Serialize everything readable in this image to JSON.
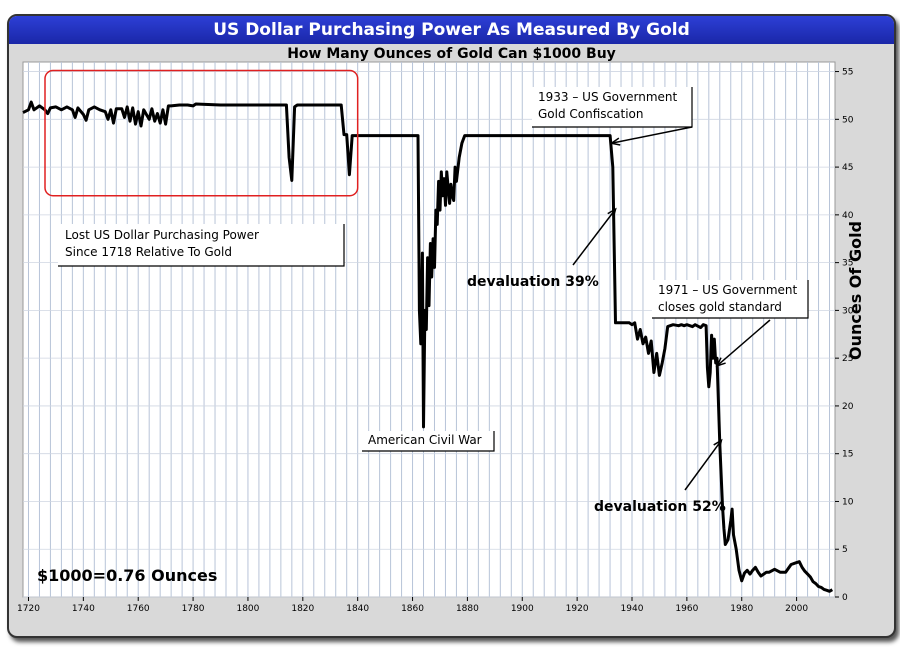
{
  "header": {
    "title": "US Dollar Purchasing Power As Measured By Gold",
    "subtitle": "How Many Ounces of Gold Can $1000 Buy"
  },
  "chart_data": {
    "type": "line",
    "ylabel": "Ounces Of Gold",
    "xlim": [
      1718,
      2014
    ],
    "ylim": [
      0,
      56
    ],
    "x_ticks": [
      1720,
      1740,
      1760,
      1780,
      1800,
      1820,
      1840,
      1860,
      1880,
      1900,
      1920,
      1940,
      1960,
      1980,
      2000
    ],
    "y_ticks": [
      0,
      5,
      10,
      15,
      20,
      25,
      30,
      35,
      40,
      45,
      50,
      55
    ],
    "grid": true,
    "series": [
      {
        "color": "#000000",
        "points": [
          [
            1718,
            50.7
          ],
          [
            1720,
            51.0
          ],
          [
            1721,
            51.8
          ],
          [
            1722,
            51.0
          ],
          [
            1724,
            51.4
          ],
          [
            1726,
            51.0
          ],
          [
            1727,
            50.6
          ],
          [
            1728,
            51.2
          ],
          [
            1730,
            51.3
          ],
          [
            1732,
            51.0
          ],
          [
            1734,
            51.3
          ],
          [
            1736,
            51.0
          ],
          [
            1737,
            50.2
          ],
          [
            1738,
            51.2
          ],
          [
            1740,
            50.5
          ],
          [
            1741,
            49.9
          ],
          [
            1742,
            51.0
          ],
          [
            1744,
            51.3
          ],
          [
            1746,
            51.0
          ],
          [
            1748,
            50.8
          ],
          [
            1749,
            50.0
          ],
          [
            1750,
            51.0
          ],
          [
            1751,
            49.6
          ],
          [
            1752,
            51.1
          ],
          [
            1754,
            51.1
          ],
          [
            1755,
            50.2
          ],
          [
            1756,
            51.3
          ],
          [
            1757,
            49.8
          ],
          [
            1758,
            51.2
          ],
          [
            1759,
            49.5
          ],
          [
            1760,
            50.8
          ],
          [
            1761,
            49.3
          ],
          [
            1762,
            51.0
          ],
          [
            1763,
            50.5
          ],
          [
            1764,
            50.0
          ],
          [
            1765,
            51.1
          ],
          [
            1766,
            49.8
          ],
          [
            1767,
            50.6
          ],
          [
            1768,
            49.6
          ],
          [
            1769,
            51.0
          ],
          [
            1770,
            49.5
          ],
          [
            1771,
            51.4
          ],
          [
            1772,
            51.4
          ],
          [
            1775,
            51.5
          ],
          [
            1778,
            51.5
          ],
          [
            1780,
            51.4
          ],
          [
            1781,
            51.6
          ],
          [
            1790,
            51.5
          ],
          [
            1800,
            51.5
          ],
          [
            1810,
            51.5
          ],
          [
            1814,
            51.5
          ],
          [
            1815,
            46.0
          ],
          [
            1816,
            43.6
          ],
          [
            1817,
            51.3
          ],
          [
            1818,
            51.5
          ],
          [
            1825,
            51.5
          ],
          [
            1830,
            51.5
          ],
          [
            1834,
            51.5
          ],
          [
            1835,
            48.4
          ],
          [
            1836,
            48.4
          ],
          [
            1837,
            44.2
          ],
          [
            1838,
            48.3
          ],
          [
            1839,
            48.3
          ],
          [
            1843,
            48.3
          ],
          [
            1850,
            48.3
          ],
          [
            1861,
            48.3
          ],
          [
            1862,
            48.3
          ],
          [
            1862.5,
            30.0
          ],
          [
            1863,
            26.5
          ],
          [
            1863.6,
            36.0
          ],
          [
            1864,
            17.8
          ],
          [
            1864.5,
            30.0
          ],
          [
            1865,
            28.0
          ],
          [
            1865.5,
            35.5
          ],
          [
            1866,
            30.5
          ],
          [
            1866.5,
            37.0
          ],
          [
            1867,
            33.5
          ],
          [
            1867.5,
            37.5
          ],
          [
            1868,
            34.5
          ],
          [
            1868.5,
            40.5
          ],
          [
            1869,
            39.0
          ],
          [
            1869.5,
            43.5
          ],
          [
            1870,
            40.5
          ],
          [
            1870.5,
            44.5
          ],
          [
            1871,
            42.0
          ],
          [
            1871.5,
            43.8
          ],
          [
            1872,
            41.0
          ],
          [
            1872.5,
            44.5
          ],
          [
            1873,
            42.8
          ],
          [
            1873.5,
            41.2
          ],
          [
            1874,
            43.2
          ],
          [
            1874.5,
            42.0
          ],
          [
            1875,
            41.5
          ],
          [
            1875.5,
            45.0
          ],
          [
            1876,
            43.5
          ],
          [
            1877,
            46.0
          ],
          [
            1878,
            47.5
          ],
          [
            1879,
            48.3
          ],
          [
            1900,
            48.3
          ],
          [
            1920,
            48.3
          ],
          [
            1932,
            48.3
          ],
          [
            1933,
            45.0
          ],
          [
            1934,
            28.7
          ],
          [
            1939,
            28.7
          ],
          [
            1940,
            28.5
          ],
          [
            1941,
            28.7
          ],
          [
            1942,
            27.0
          ],
          [
            1943,
            28.0
          ],
          [
            1944,
            26.5
          ],
          [
            1945,
            27.2
          ],
          [
            1946,
            25.5
          ],
          [
            1947,
            26.8
          ],
          [
            1948,
            23.5
          ],
          [
            1949,
            25.5
          ],
          [
            1950,
            23.2
          ],
          [
            1951,
            24.5
          ],
          [
            1952,
            26.0
          ],
          [
            1953,
            28.3
          ],
          [
            1955,
            28.5
          ],
          [
            1957,
            28.4
          ],
          [
            1958,
            28.5
          ],
          [
            1959,
            28.4
          ],
          [
            1960,
            28.5
          ],
          [
            1962,
            28.3
          ],
          [
            1963,
            28.5
          ],
          [
            1965,
            28.2
          ],
          [
            1966,
            28.5
          ],
          [
            1967,
            28.4
          ],
          [
            1967.5,
            24.0
          ],
          [
            1968,
            22.0
          ],
          [
            1968.5,
            23.5
          ],
          [
            1969,
            27.4
          ],
          [
            1969.5,
            25.0
          ],
          [
            1970,
            27.0
          ],
          [
            1970.5,
            24.5
          ],
          [
            1971,
            25.0
          ],
          [
            1972,
            16.0
          ],
          [
            1973,
            9.5
          ],
          [
            1973.5,
            7.2
          ],
          [
            1974,
            5.5
          ],
          [
            1975,
            6.0
          ],
          [
            1976,
            8.0
          ],
          [
            1976.5,
            9.2
          ],
          [
            1977,
            6.5
          ],
          [
            1978,
            5.0
          ],
          [
            1979,
            2.8
          ],
          [
            1980,
            1.7
          ],
          [
            1981,
            2.5
          ],
          [
            1982,
            2.8
          ],
          [
            1983,
            2.4
          ],
          [
            1984,
            2.8
          ],
          [
            1985,
            3.1
          ],
          [
            1986,
            2.6
          ],
          [
            1987,
            2.2
          ],
          [
            1988,
            2.4
          ],
          [
            1989,
            2.6
          ],
          [
            1990,
            2.6
          ],
          [
            1992,
            2.9
          ],
          [
            1994,
            2.6
          ],
          [
            1996,
            2.6
          ],
          [
            1998,
            3.4
          ],
          [
            2000,
            3.6
          ],
          [
            2001,
            3.7
          ],
          [
            2002,
            3.1
          ],
          [
            2003,
            2.7
          ],
          [
            2004,
            2.4
          ],
          [
            2005,
            2.1
          ],
          [
            2006,
            1.6
          ],
          [
            2007,
            1.4
          ],
          [
            2008,
            1.1
          ],
          [
            2009,
            1.0
          ],
          [
            2010,
            0.8
          ],
          [
            2011,
            0.7
          ],
          [
            2012,
            0.6
          ],
          [
            2013,
            0.76
          ]
        ]
      }
    ],
    "annotations": [
      {
        "name": "lost-power-note",
        "lines": [
          "Lost US Dollar Purchasing Power",
          "Since 1718 Relative To Gold"
        ],
        "boxed": true
      },
      {
        "name": "civil-war-note",
        "lines": [
          "American Civil War"
        ],
        "boxed": true
      },
      {
        "name": "confiscation-note",
        "lines": [
          "1933 – US Government",
          "Gold Confiscation"
        ],
        "boxed": true
      },
      {
        "name": "devaluation-39-note",
        "lines": [
          "devaluation 39%"
        ],
        "boxed": false
      },
      {
        "name": "gold-standard-note",
        "lines": [
          "1971 – US Government",
          "closes gold standard"
        ],
        "boxed": true
      },
      {
        "name": "devaluation-52-note",
        "lines": [
          "devaluation 52%"
        ],
        "boxed": false
      },
      {
        "name": "current-value-note",
        "lines": [
          "$1000=0.76 Ounces"
        ],
        "boxed": false
      }
    ],
    "highlight": {
      "x_range": [
        1718,
        1840
      ],
      "y_range": [
        42,
        55
      ],
      "color": "#e02020"
    }
  }
}
